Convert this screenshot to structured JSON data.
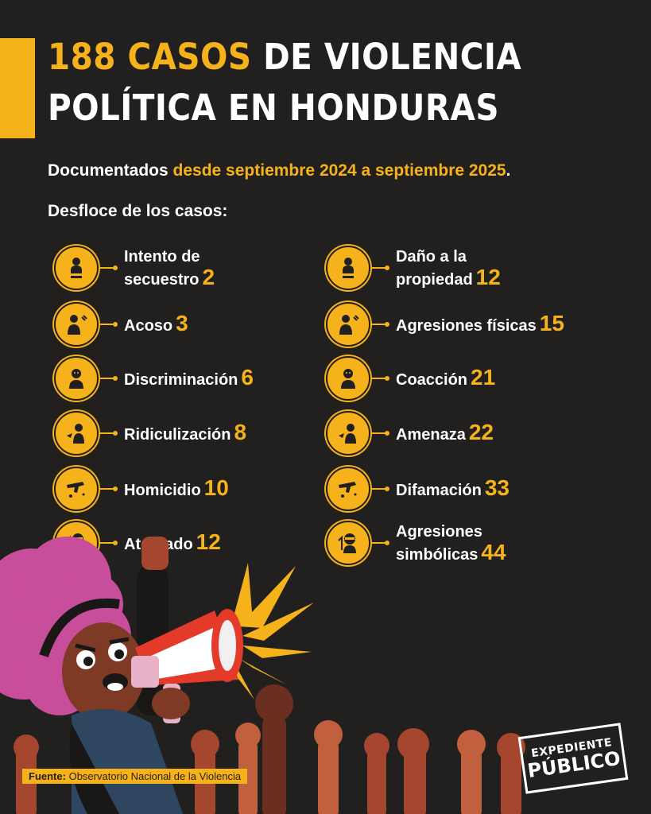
{
  "header": {
    "title_highlight": "188 CASOS",
    "title_rest_line1": "DE VIOLENCIA",
    "title_line2": "POLÍTICA EN HONDURAS"
  },
  "subtitle": {
    "prefix": "Documentados",
    "highlight": "desde septiembre 2024 a septiembre 2025",
    "suffix": "."
  },
  "breakdown_label": "Desfloce de los casos:",
  "categories_left": [
    {
      "line1": "Intento de",
      "line2": "secuestro",
      "value": "2",
      "icon": "kidnapping-icon"
    },
    {
      "line1": "Acoso",
      "line2": "",
      "value": "3",
      "icon": "harassment-icon"
    },
    {
      "line1": "Discriminación",
      "line2": "",
      "value": "6",
      "icon": "discrimination-icon"
    },
    {
      "line1": "Ridiculización",
      "line2": "",
      "value": "8",
      "icon": "ridicule-icon"
    },
    {
      "line1": "Homicidio",
      "line2": "",
      "value": "10",
      "icon": "homicide-icon"
    },
    {
      "line1": "Atentado",
      "line2": "",
      "value": "12",
      "icon": "attack-icon"
    }
  ],
  "categories_right": [
    {
      "line1": "Daño a la",
      "line2": "propiedad",
      "value": "12",
      "icon": "property-damage-icon"
    },
    {
      "line1": "Agresiones físicas",
      "line2": "",
      "value": "15",
      "icon": "physical-aggression-icon"
    },
    {
      "line1": "Coacción",
      "line2": "",
      "value": "21",
      "icon": "coercion-icon"
    },
    {
      "line1": "Amenaza",
      "line2": "",
      "value": "22",
      "icon": "threat-icon"
    },
    {
      "line1": "Difamación",
      "line2": "",
      "value": "33",
      "icon": "defamation-icon"
    },
    {
      "line1": "Agresiones",
      "line2": "simbólicas",
      "value": "44",
      "icon": "symbolic-aggression-icon"
    }
  ],
  "source": {
    "label": "Fuente:",
    "text": "Observatorio Nacional de la Violencia"
  },
  "logo": {
    "line1": "EXPEDIENTE",
    "line2": "PÚBLICO"
  },
  "colors": {
    "background": "#221f1f",
    "accent": "#f6b21b",
    "text": "#ffffff"
  }
}
